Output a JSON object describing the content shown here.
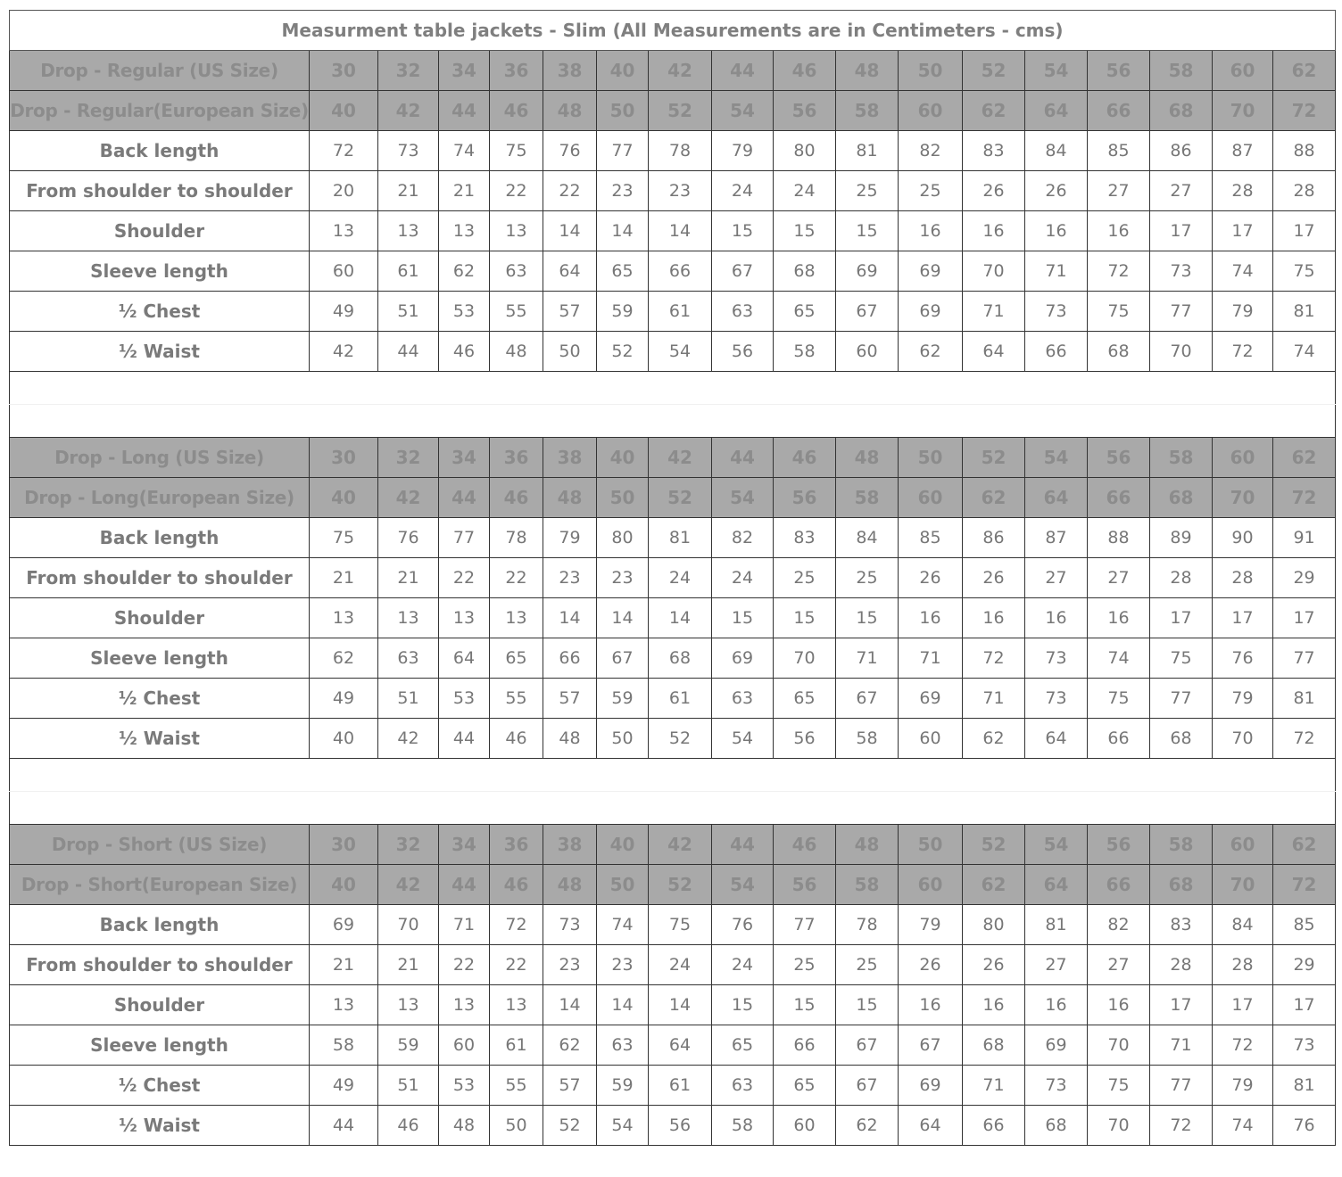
{
  "title": "Measurment table jackets - Slim (All Measurements are in Centimeters - cms)",
  "colors": {
    "header_bg": "#a9a9a9",
    "header_text": "#8c8c8c",
    "body_text": "#777777",
    "border": "#333333"
  },
  "sections": [
    {
      "us_label": "Drop - Regular (US Size)",
      "eu_label": "Drop - Regular(European Size)",
      "us_sizes": [
        "30",
        "32",
        "34",
        "36",
        "38",
        "40",
        "42",
        "44",
        "46",
        "48",
        "50",
        "52",
        "54",
        "56",
        "58",
        "60",
        "62"
      ],
      "eu_sizes": [
        "40",
        "42",
        "44",
        "46",
        "48",
        "50",
        "52",
        "54",
        "56",
        "58",
        "60",
        "62",
        "64",
        "66",
        "68",
        "70",
        "72"
      ],
      "rows": [
        {
          "label": "Back length",
          "values": [
            "72",
            "73",
            "74",
            "75",
            "76",
            "77",
            "78",
            "79",
            "80",
            "81",
            "82",
            "83",
            "84",
            "85",
            "86",
            "87",
            "88"
          ]
        },
        {
          "label": "From shoulder to shoulder",
          "values": [
            "20",
            "21",
            "21",
            "22",
            "22",
            "23",
            "23",
            "24",
            "24",
            "25",
            "25",
            "26",
            "26",
            "27",
            "27",
            "28",
            "28"
          ]
        },
        {
          "label": "Shoulder",
          "values": [
            "13",
            "13",
            "13",
            "13",
            "14",
            "14",
            "14",
            "15",
            "15",
            "15",
            "16",
            "16",
            "16",
            "16",
            "17",
            "17",
            "17"
          ]
        },
        {
          "label": "Sleeve length",
          "values": [
            "60",
            "61",
            "62",
            "63",
            "64",
            "65",
            "66",
            "67",
            "68",
            "69",
            "69",
            "70",
            "71",
            "72",
            "73",
            "74",
            "75"
          ]
        },
        {
          "label": "½ Chest",
          "values": [
            "49",
            "51",
            "53",
            "55",
            "57",
            "59",
            "61",
            "63",
            "65",
            "67",
            "69",
            "71",
            "73",
            "75",
            "77",
            "79",
            "81"
          ]
        },
        {
          "label": "½ Waist",
          "values": [
            "42",
            "44",
            "46",
            "48",
            "50",
            "52",
            "54",
            "56",
            "58",
            "60",
            "62",
            "64",
            "66",
            "68",
            "70",
            "72",
            "74"
          ]
        }
      ]
    },
    {
      "us_label": "Drop - Long (US Size)",
      "eu_label": "Drop - Long(European Size)",
      "us_sizes": [
        "30",
        "32",
        "34",
        "36",
        "38",
        "40",
        "42",
        "44",
        "46",
        "48",
        "50",
        "52",
        "54",
        "56",
        "58",
        "60",
        "62"
      ],
      "eu_sizes": [
        "40",
        "42",
        "44",
        "46",
        "48",
        "50",
        "52",
        "54",
        "56",
        "58",
        "60",
        "62",
        "64",
        "66",
        "68",
        "70",
        "72"
      ],
      "rows": [
        {
          "label": "Back length",
          "values": [
            "75",
            "76",
            "77",
            "78",
            "79",
            "80",
            "81",
            "82",
            "83",
            "84",
            "85",
            "86",
            "87",
            "88",
            "89",
            "90",
            "91"
          ]
        },
        {
          "label": "From shoulder to shoulder",
          "values": [
            "21",
            "21",
            "22",
            "22",
            "23",
            "23",
            "24",
            "24",
            "25",
            "25",
            "26",
            "26",
            "27",
            "27",
            "28",
            "28",
            "29"
          ]
        },
        {
          "label": "Shoulder",
          "values": [
            "13",
            "13",
            "13",
            "13",
            "14",
            "14",
            "14",
            "15",
            "15",
            "15",
            "16",
            "16",
            "16",
            "16",
            "17",
            "17",
            "17"
          ]
        },
        {
          "label": "Sleeve length",
          "values": [
            "62",
            "63",
            "64",
            "65",
            "66",
            "67",
            "68",
            "69",
            "70",
            "71",
            "71",
            "72",
            "73",
            "74",
            "75",
            "76",
            "77"
          ]
        },
        {
          "label": "½ Chest",
          "values": [
            "49",
            "51",
            "53",
            "55",
            "57",
            "59",
            "61",
            "63",
            "65",
            "67",
            "69",
            "71",
            "73",
            "75",
            "77",
            "79",
            "81"
          ]
        },
        {
          "label": "½ Waist",
          "values": [
            "40",
            "42",
            "44",
            "46",
            "48",
            "50",
            "52",
            "54",
            "56",
            "58",
            "60",
            "62",
            "64",
            "66",
            "68",
            "70",
            "72"
          ]
        }
      ]
    },
    {
      "us_label": "Drop - Short (US Size)",
      "eu_label": "Drop - Short(European Size)",
      "us_sizes": [
        "30",
        "32",
        "34",
        "36",
        "38",
        "40",
        "42",
        "44",
        "46",
        "48",
        "50",
        "52",
        "54",
        "56",
        "58",
        "60",
        "62"
      ],
      "eu_sizes": [
        "40",
        "42",
        "44",
        "46",
        "48",
        "50",
        "52",
        "54",
        "56",
        "58",
        "60",
        "62",
        "64",
        "66",
        "68",
        "70",
        "72"
      ],
      "rows": [
        {
          "label": "Back length",
          "values": [
            "69",
            "70",
            "71",
            "72",
            "73",
            "74",
            "75",
            "76",
            "77",
            "78",
            "79",
            "80",
            "81",
            "82",
            "83",
            "84",
            "85"
          ]
        },
        {
          "label": "From shoulder to shoulder",
          "values": [
            "21",
            "21",
            "22",
            "22",
            "23",
            "23",
            "24",
            "24",
            "25",
            "25",
            "26",
            "26",
            "27",
            "27",
            "28",
            "28",
            "29"
          ]
        },
        {
          "label": "Shoulder",
          "values": [
            "13",
            "13",
            "13",
            "13",
            "14",
            "14",
            "14",
            "15",
            "15",
            "15",
            "16",
            "16",
            "16",
            "16",
            "17",
            "17",
            "17"
          ]
        },
        {
          "label": "Sleeve length",
          "values": [
            "58",
            "59",
            "60",
            "61",
            "62",
            "63",
            "64",
            "65",
            "66",
            "67",
            "67",
            "68",
            "69",
            "70",
            "71",
            "72",
            "73"
          ]
        },
        {
          "label": "½ Chest",
          "values": [
            "49",
            "51",
            "53",
            "55",
            "57",
            "59",
            "61",
            "63",
            "65",
            "67",
            "69",
            "71",
            "73",
            "75",
            "77",
            "79",
            "81"
          ]
        },
        {
          "label": "½ Waist",
          "values": [
            "44",
            "46",
            "48",
            "50",
            "52",
            "54",
            "56",
            "58",
            "60",
            "62",
            "64",
            "66",
            "68",
            "70",
            "72",
            "74",
            "76"
          ]
        }
      ]
    }
  ]
}
